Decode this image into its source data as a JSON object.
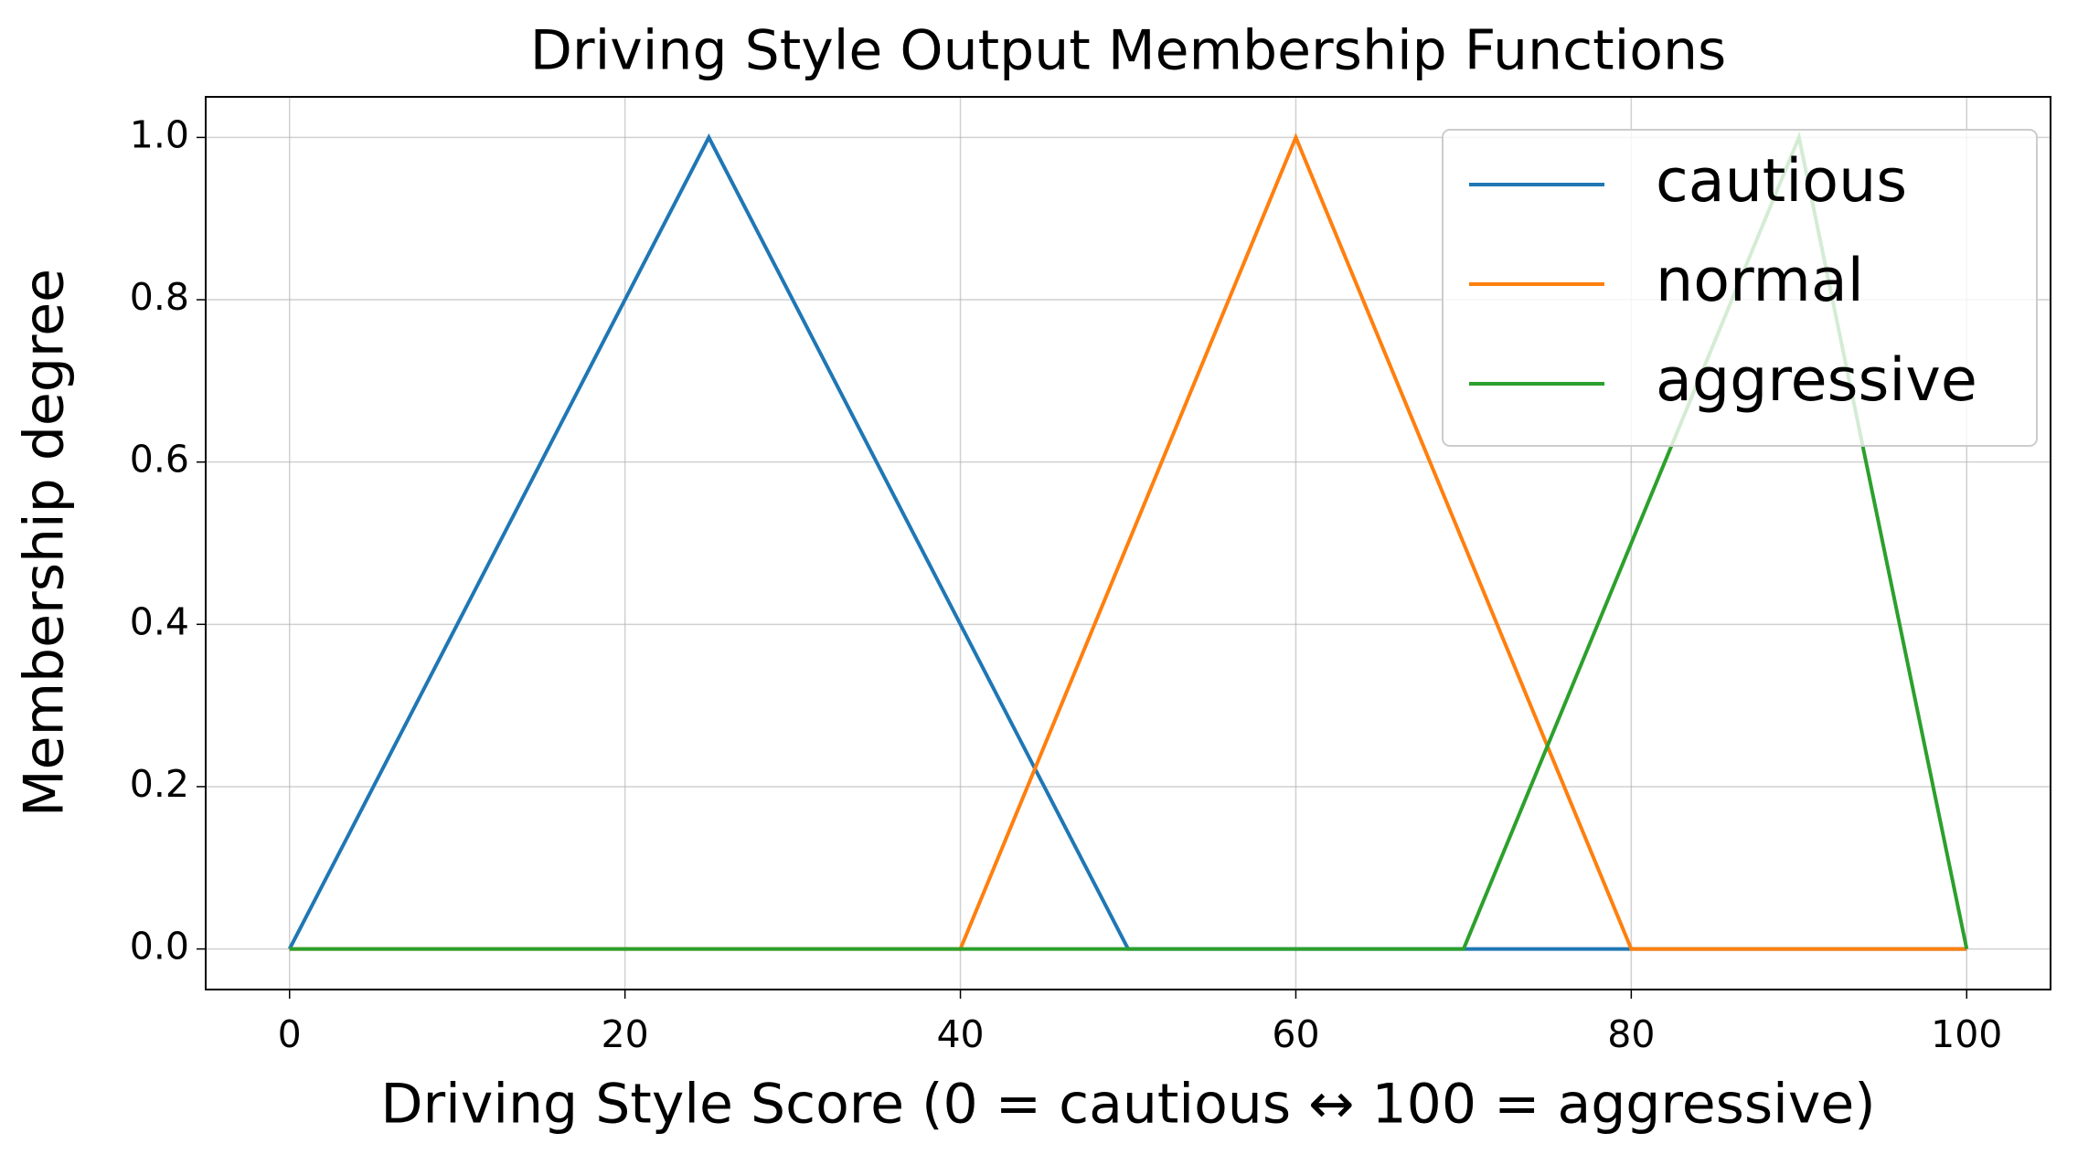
{
  "chart_data": {
    "type": "line",
    "title": "Driving Style Output Membership Functions",
    "x_label": "Driving Style Score (0 = cautious ↔ 100 = aggressive)",
    "y_label": "Membership degree",
    "series": [
      {
        "name": "cautious",
        "color": "#1f77b4",
        "x": [
          0,
          25,
          50,
          100
        ],
        "values": [
          0,
          1,
          0,
          0
        ]
      },
      {
        "name": "normal",
        "color": "#ff7f0e",
        "x": [
          0,
          40,
          60,
          80,
          100
        ],
        "values": [
          0,
          0,
          1,
          0,
          0
        ]
      },
      {
        "name": "aggressive",
        "color": "#2ca02c",
        "x": [
          0,
          70,
          90,
          100
        ],
        "values": [
          0,
          0,
          1,
          0
        ]
      }
    ],
    "xlim": [
      -5,
      105
    ],
    "xticks": [
      0,
      20,
      40,
      60,
      80,
      100
    ],
    "ylim": [
      -0.05,
      1.05
    ],
    "yticks": [
      {
        "value": 0,
        "label": "0.0"
      },
      {
        "value": 0.2,
        "label": "0.2"
      },
      {
        "value": 0.4,
        "label": "0.4"
      },
      {
        "value": 0.6,
        "label": "0.6"
      },
      {
        "value": 0.8,
        "label": "0.8"
      },
      {
        "value": 1,
        "label": "1.0"
      }
    ],
    "grid": true,
    "legend": "upper right"
  }
}
